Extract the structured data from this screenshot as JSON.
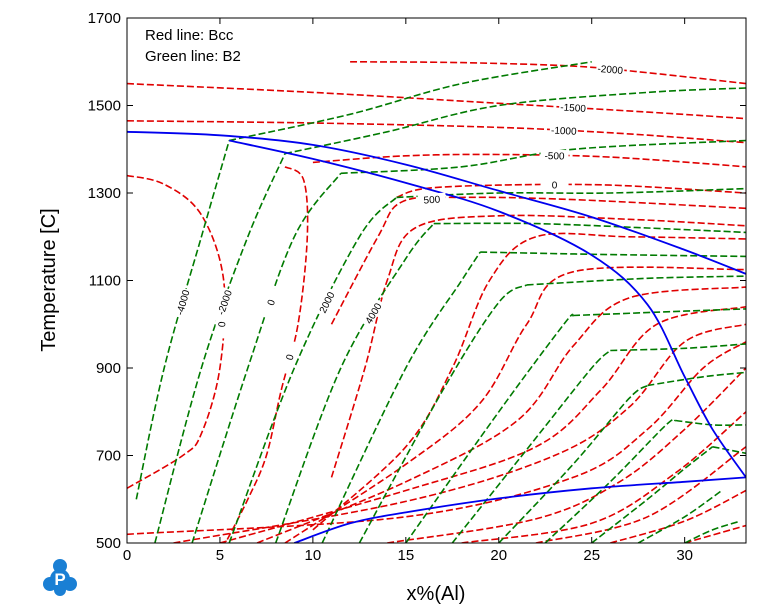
{
  "chart_data": {
    "type": "line",
    "xlabel": "x%(Al)",
    "ylabel": "Temperature [C]",
    "xlim": [
      0,
      33.3
    ],
    "ylim": [
      500,
      1700
    ],
    "x_ticks": [
      0,
      5,
      10,
      15,
      20,
      25,
      30
    ],
    "y_ticks": [
      500,
      700,
      900,
      1100,
      1300,
      1500,
      1700
    ],
    "legend_lines": [
      "Red line: Bcc",
      "Green line: B2"
    ],
    "legend_placement": "top-left",
    "grid": false,
    "colors": {
      "bcc": "#e00000",
      "b2": "#007a00",
      "phase_boundary": "#0000ee",
      "logo": "#1a7fd4"
    },
    "phase_boundaries": [
      {
        "points": [
          [
            0,
            1440
          ],
          [
            5,
            1432
          ],
          [
            10,
            1410
          ],
          [
            15,
            1365
          ],
          [
            20,
            1305
          ],
          [
            25,
            1245
          ],
          [
            30,
            1170
          ],
          [
            33.3,
            1115
          ]
        ]
      },
      {
        "points": [
          [
            5.5,
            1420
          ],
          [
            10,
            1378
          ],
          [
            15,
            1323
          ],
          [
            20,
            1258
          ],
          [
            25,
            1158
          ],
          [
            28,
            1045
          ],
          [
            30,
            880
          ],
          [
            31.5,
            760
          ],
          [
            33.3,
            650
          ]
        ]
      },
      {
        "points": [
          [
            9,
            500
          ],
          [
            12,
            545
          ],
          [
            15,
            570
          ],
          [
            20,
            602
          ],
          [
            25,
            625
          ],
          [
            30,
            640
          ],
          [
            33.3,
            650
          ]
        ]
      }
    ],
    "bcc_contours": [
      {
        "label": "-2000",
        "points": [
          [
            12,
            1600
          ],
          [
            18,
            1598
          ],
          [
            24,
            1590
          ],
          [
            28,
            1575
          ],
          [
            33.3,
            1550
          ]
        ]
      },
      {
        "label": "-1500",
        "points": [
          [
            0,
            1550
          ],
          [
            10,
            1530
          ],
          [
            20,
            1505
          ],
          [
            28,
            1485
          ],
          [
            33.3,
            1470
          ]
        ]
      },
      {
        "label": "-1000",
        "points": [
          [
            0,
            1465
          ],
          [
            10,
            1460
          ],
          [
            20,
            1450
          ],
          [
            27,
            1435
          ],
          [
            33.3,
            1415
          ]
        ]
      },
      {
        "label": "-500",
        "points": [
          [
            10,
            1370
          ],
          [
            15,
            1385
          ],
          [
            20,
            1388
          ],
          [
            26,
            1382
          ],
          [
            33.3,
            1360
          ]
        ]
      },
      {
        "label": "0",
        "points": [
          [
            0,
            1340
          ],
          [
            2,
            1320
          ],
          [
            4,
            1250
          ],
          [
            5.2,
            1100
          ],
          [
            5,
            900
          ],
          [
            4,
            750
          ],
          [
            3,
            700
          ],
          [
            0,
            625
          ]
        ]
      },
      {
        "label": "0",
        "points": [
          [
            8.5,
            1360
          ],
          [
            9.5,
            1330
          ],
          [
            9.7,
            1200
          ],
          [
            9.2,
            1000
          ],
          [
            8.3,
            850
          ],
          [
            7.5,
            700
          ],
          [
            6.5,
            600
          ],
          [
            5.3,
            500
          ]
        ]
      },
      {
        "label": "0",
        "points": [
          [
            14.5,
            1290
          ],
          [
            16,
            1310
          ],
          [
            20,
            1318
          ],
          [
            26,
            1318
          ],
          [
            33.3,
            1300
          ]
        ]
      },
      {
        "label": "500",
        "points": [
          [
            11,
            1000
          ],
          [
            13.5,
            1200
          ],
          [
            14.8,
            1280
          ],
          [
            18,
            1290
          ],
          [
            24,
            1285
          ],
          [
            33.3,
            1265
          ]
        ]
      },
      {
        "points": [
          [
            11,
            650
          ],
          [
            12.8,
            900
          ],
          [
            14,
            1100
          ],
          [
            15.5,
            1220
          ],
          [
            20,
            1248
          ],
          [
            27,
            1240
          ],
          [
            33.3,
            1225
          ]
        ]
      },
      {
        "points": [
          [
            10,
            530
          ],
          [
            15,
            720
          ],
          [
            17.5,
            900
          ],
          [
            19.5,
            1100
          ],
          [
            22,
            1200
          ],
          [
            27,
            1200
          ],
          [
            33.3,
            1195
          ]
        ]
      },
      {
        "points": [
          [
            8.5,
            500
          ],
          [
            15,
            680
          ],
          [
            19,
            820
          ],
          [
            21.5,
            1000
          ],
          [
            24,
            1120
          ],
          [
            33.3,
            1125
          ]
        ]
      },
      {
        "points": [
          [
            7,
            500
          ],
          [
            15,
            640
          ],
          [
            21,
            780
          ],
          [
            24,
            950
          ],
          [
            27,
            1060
          ],
          [
            33.3,
            1085
          ]
        ]
      },
      {
        "points": [
          [
            5,
            500
          ],
          [
            15,
            620
          ],
          [
            22,
            720
          ],
          [
            25.5,
            850
          ],
          [
            28.5,
            1000
          ],
          [
            33.3,
            1040
          ]
        ]
      },
      {
        "points": [
          [
            2.5,
            500
          ],
          [
            15,
            595
          ],
          [
            23,
            700
          ],
          [
            27,
            810
          ],
          [
            30,
            960
          ],
          [
            33.3,
            1000
          ]
        ]
      },
      {
        "points": [
          [
            0,
            520
          ],
          [
            15,
            560
          ],
          [
            24,
            650
          ],
          [
            28,
            760
          ],
          [
            31,
            900
          ],
          [
            33.3,
            960
          ]
        ]
      },
      {
        "points": [
          [
            14,
            500
          ],
          [
            22,
            555
          ],
          [
            26.5,
            640
          ],
          [
            30,
            760
          ],
          [
            33.3,
            900
          ]
        ]
      },
      {
        "points": [
          [
            18,
            500
          ],
          [
            25,
            545
          ],
          [
            29.5,
            660
          ],
          [
            33.3,
            800
          ]
        ]
      },
      {
        "points": [
          [
            22,
            500
          ],
          [
            28,
            560
          ],
          [
            33.3,
            720
          ]
        ]
      },
      {
        "points": [
          [
            26,
            500
          ],
          [
            30,
            550
          ],
          [
            33.3,
            620
          ]
        ]
      },
      {
        "points": [
          [
            30,
            500
          ],
          [
            33.3,
            540
          ]
        ]
      }
    ],
    "b2_contours": [
      {
        "label": "-4000",
        "points": [
          [
            0.5,
            600
          ],
          [
            2,
            900
          ],
          [
            4,
            1200
          ],
          [
            5.5,
            1420
          ]
        ]
      },
      {
        "label": "-2000",
        "points": [
          [
            1.5,
            500
          ],
          [
            4,
            900
          ],
          [
            6.5,
            1200
          ],
          [
            8.5,
            1390
          ]
        ]
      },
      {
        "label": "0",
        "points": [
          [
            3.5,
            500
          ],
          [
            6.5,
            900
          ],
          [
            9,
            1200
          ],
          [
            11.5,
            1345
          ]
        ]
      },
      {
        "label": "2000",
        "points": [
          [
            5.5,
            500
          ],
          [
            9,
            900
          ],
          [
            12.5,
            1200
          ],
          [
            14.5,
            1290
          ]
        ]
      },
      {
        "label": "4000",
        "points": [
          [
            8,
            500
          ],
          [
            11.5,
            900
          ],
          [
            15,
            1150
          ],
          [
            16.5,
            1230
          ]
        ]
      },
      {
        "points": [
          [
            10.5,
            500
          ],
          [
            15,
            900
          ],
          [
            18,
            1100
          ],
          [
            19,
            1165
          ]
        ]
      },
      {
        "points": [
          [
            12.5,
            500
          ],
          [
            17,
            850
          ],
          [
            20,
            1050
          ],
          [
            21.5,
            1090
          ]
        ]
      },
      {
        "points": [
          [
            15,
            500
          ],
          [
            20,
            800
          ],
          [
            23.5,
            1000
          ],
          [
            24,
            1020
          ]
        ]
      },
      {
        "points": [
          [
            17.5,
            500
          ],
          [
            22,
            740
          ],
          [
            25,
            900
          ],
          [
            26,
            940
          ]
        ]
      },
      {
        "points": [
          [
            20,
            500
          ],
          [
            24,
            680
          ],
          [
            27,
            830
          ],
          [
            28,
            860
          ]
        ]
      },
      {
        "points": [
          [
            22.5,
            500
          ],
          [
            26,
            640
          ],
          [
            29,
            770
          ],
          [
            29.5,
            780
          ]
        ]
      },
      {
        "points": [
          [
            25,
            500
          ],
          [
            28,
            600
          ],
          [
            30,
            670
          ],
          [
            31.5,
            720
          ]
        ]
      },
      {
        "points": [
          [
            27.5,
            500
          ],
          [
            30,
            560
          ],
          [
            32,
            620
          ]
        ]
      },
      {
        "points": [
          [
            30,
            500
          ],
          [
            31.5,
            530
          ],
          [
            33,
            550
          ]
        ]
      },
      {
        "points": [
          [
            5.5,
            1420
          ],
          [
            12,
            1480
          ],
          [
            18,
            1550
          ],
          [
            25,
            1600
          ]
        ]
      },
      {
        "points": [
          [
            8.5,
            1390
          ],
          [
            14,
            1440
          ],
          [
            20,
            1500
          ],
          [
            28,
            1530
          ],
          [
            33.3,
            1540
          ]
        ]
      },
      {
        "points": [
          [
            11.5,
            1345
          ],
          [
            18,
            1360
          ],
          [
            24,
            1400
          ],
          [
            33.3,
            1420
          ]
        ]
      },
      {
        "points": [
          [
            14.5,
            1290
          ],
          [
            20,
            1300
          ],
          [
            26,
            1300
          ],
          [
            33.3,
            1310
          ]
        ]
      },
      {
        "points": [
          [
            16.5,
            1230
          ],
          [
            22,
            1230
          ],
          [
            28,
            1220
          ],
          [
            33.3,
            1210
          ]
        ]
      },
      {
        "points": [
          [
            19,
            1165
          ],
          [
            25,
            1160
          ],
          [
            33.3,
            1155
          ]
        ]
      },
      {
        "points": [
          [
            21.5,
            1090
          ],
          [
            28,
            1105
          ],
          [
            33.3,
            1110
          ]
        ]
      },
      {
        "points": [
          [
            24,
            1020
          ],
          [
            30,
            1030
          ],
          [
            33.3,
            1035
          ]
        ]
      },
      {
        "points": [
          [
            26,
            940
          ],
          [
            30,
            945
          ],
          [
            33.3,
            955
          ]
        ]
      },
      {
        "points": [
          [
            28,
            860
          ],
          [
            31,
            880
          ],
          [
            33.3,
            890
          ]
        ]
      },
      {
        "points": [
          [
            29.5,
            780
          ],
          [
            31.5,
            770
          ],
          [
            33.3,
            770
          ]
        ]
      },
      {
        "points": [
          [
            31.5,
            720
          ],
          [
            33.3,
            705
          ]
        ]
      }
    ]
  }
}
